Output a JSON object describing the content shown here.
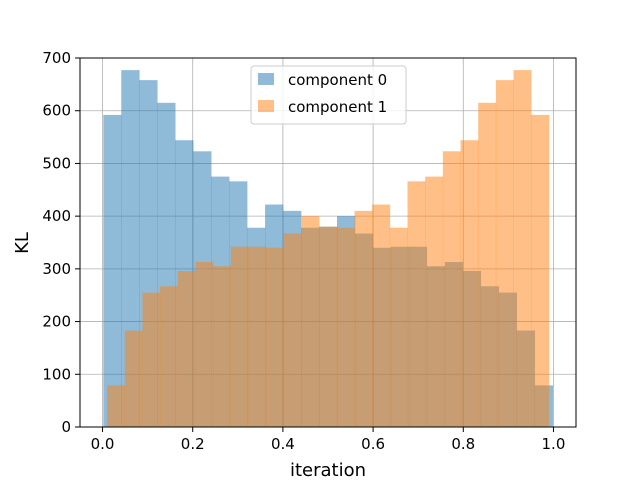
{
  "chart_data": {
    "type": "bar",
    "title": "",
    "xlabel": "iteration",
    "ylabel": "KL",
    "xlim": [
      -0.05,
      1.05
    ],
    "ylim": [
      0,
      700
    ],
    "xticks": [
      "0.0",
      "0.2",
      "0.4",
      "0.6",
      "0.8",
      "1.0"
    ],
    "yticks": [
      "0",
      "100",
      "200",
      "300",
      "400",
      "500",
      "600",
      "700"
    ],
    "grid": true,
    "legend_position": "top-center",
    "series": [
      {
        "name": "component 0",
        "color": "#1f77b4",
        "alpha": 0.5,
        "x_start": 0.0017,
        "x_end": 0.9983,
        "values": [
          592,
          677,
          658,
          615,
          544,
          523,
          475,
          466,
          378,
          422,
          410,
          378,
          380,
          400,
          367,
          340,
          342,
          342,
          305,
          313,
          296,
          267,
          255,
          183,
          79
        ]
      },
      {
        "name": "component 1",
        "color": "#ff7f0e",
        "alpha": 0.5,
        "x_start": 0.0101,
        "x_end": 0.9899,
        "values": [
          79,
          183,
          255,
          267,
          296,
          313,
          305,
          342,
          342,
          340,
          367,
          400,
          380,
          378,
          410,
          422,
          378,
          466,
          475,
          523,
          544,
          615,
          658,
          677,
          592
        ]
      }
    ]
  }
}
